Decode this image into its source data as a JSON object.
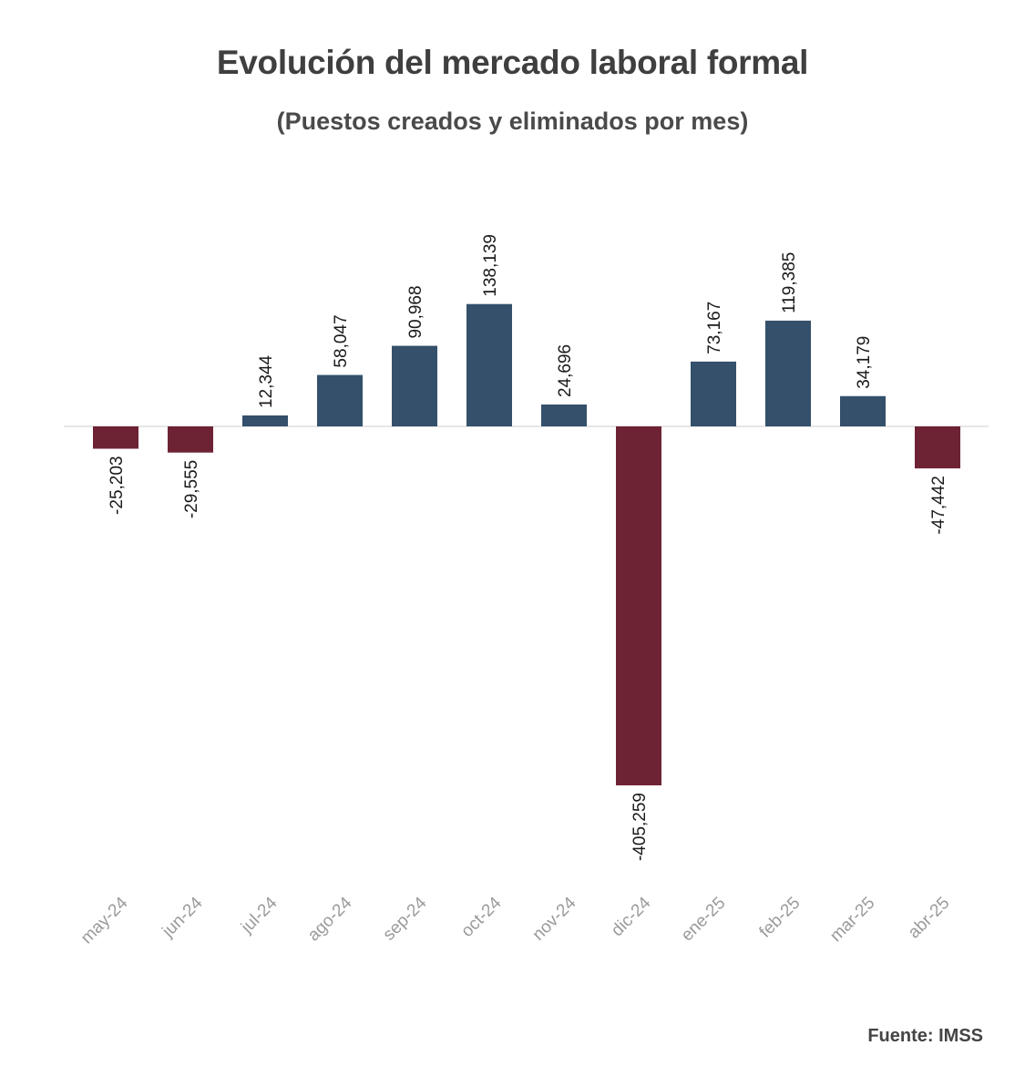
{
  "title": "Evolución del mercado laboral formal",
  "subtitle": "(Puestos creados y eliminados por mes)",
  "source": "Fuente: IMSS",
  "colors": {
    "positive": "#34506b",
    "negative": "#6e2334",
    "axis_label": "#9a9a9a",
    "baseline": "#e6e6e6"
  },
  "chart_data": {
    "type": "bar",
    "title": "Evolución del mercado laboral formal",
    "subtitle": "(Puestos creados y eliminados por mes)",
    "xlabel": "",
    "ylabel": "",
    "grid": false,
    "legend": "none",
    "categories": [
      "may-24",
      "jun-24",
      "jul-24",
      "ago-24",
      "sep-24",
      "oct-24",
      "nov-24",
      "dic-24",
      "ene-25",
      "feb-25",
      "mar-25",
      "abr-25"
    ],
    "values": [
      -25203,
      -29555,
      12344,
      58047,
      90968,
      138139,
      24696,
      -405259,
      73167,
      119385,
      34179,
      -47442
    ],
    "data_labels": [
      "-25,203",
      "-29,555",
      "12,344",
      "58,047",
      "90,968",
      "138,139",
      "24,696",
      "-405,259",
      "73,167",
      "119,385",
      "34,179",
      "-47,442"
    ]
  }
}
